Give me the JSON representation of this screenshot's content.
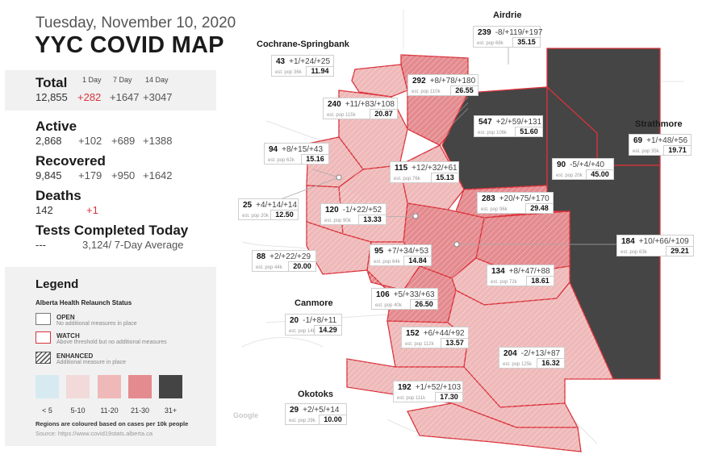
{
  "header": {
    "date": "Tuesday, November 10, 2020",
    "title": "YYC COVID MAP"
  },
  "columns": {
    "one_day": "1 Day",
    "seven_day": "7 Day",
    "fourteen_day": "14 Day"
  },
  "stats": {
    "total": {
      "label": "Total",
      "value": "12,855",
      "d1": "+282",
      "d7": "+1647",
      "d14": "+3047"
    },
    "active": {
      "label": "Active",
      "value": "2,868",
      "d1": "+102",
      "d7": "+689",
      "d14": "+1388"
    },
    "recovered": {
      "label": "Recovered",
      "value": "9,845",
      "d1": "+179",
      "d7": "+950",
      "d14": "+1642"
    },
    "deaths": {
      "label": "Deaths",
      "value": "142",
      "d1": "+1"
    },
    "tests": {
      "label": "Tests Completed Today",
      "value": "---",
      "avg": "3,124/ 7-Day Average"
    }
  },
  "legend": {
    "title": "Legend",
    "subtitle": "Alberta Health Relaunch Status",
    "statuses": [
      {
        "name": "OPEN",
        "desc": "No additional measures in place"
      },
      {
        "name": "WATCH",
        "desc": "Above threshold but no additional measures"
      },
      {
        "name": "ENHANCED",
        "desc": "Additional measure in place"
      }
    ],
    "scale": [
      {
        "label": "< 5",
        "color": "#d7eaf2"
      },
      {
        "label": "5-10",
        "color": "#f2dada"
      },
      {
        "label": "11-20",
        "color": "#efb9b9"
      },
      {
        "label": "21-30",
        "color": "#e48b8f"
      },
      {
        "label": "31+",
        "color": "#444444"
      }
    ],
    "note": "Regions are coloured based on cases per 10k people",
    "source": "Source: https://www.covid19stats.alberta.ca"
  },
  "towns": {
    "airdrie": "Airdrie",
    "cochrane": "Cochrane-Springbank",
    "strathmore": "Strathmore",
    "canmore": "Canmore",
    "okotoks": "Okotoks"
  },
  "map_tags": {
    "google": "Google"
  },
  "colors": {
    "dark": "#454545",
    "high": "#e48b8f",
    "mid": "#efb9b9",
    "low": "#f2dada",
    "border": "#d9333b"
  },
  "regions": [
    {
      "id": "airdrie",
      "cases": "239",
      "delta": "-8/+119/+197",
      "pop": "est. pop 68k",
      "rate": "35.15"
    },
    {
      "id": "cochrane",
      "cases": "43",
      "delta": "+1/+24/+25",
      "pop": "est. pop 36k",
      "rate": "11.94"
    },
    {
      "id": "nw-292",
      "cases": "292",
      "delta": "+8/+78/+180",
      "pop": "est. pop 110k",
      "rate": "26.55"
    },
    {
      "id": "nw-240",
      "cases": "240",
      "delta": "+11/+83/+108",
      "pop": "est. pop 115k",
      "rate": "20.87"
    },
    {
      "id": "ne-547",
      "cases": "547",
      "delta": "+2/+59/+131",
      "pop": "est. pop 106k",
      "rate": "51.60"
    },
    {
      "id": "strathmore",
      "cases": "69",
      "delta": "+1/+48/+56",
      "pop": "est. pop 35k",
      "rate": "19.71"
    },
    {
      "id": "w-94",
      "cases": "94",
      "delta": "+8/+15/+43",
      "pop": "est. pop 62k",
      "rate": "15.16"
    },
    {
      "id": "c-115",
      "cases": "115",
      "delta": "+12/+32/+61",
      "pop": "est. pop 76k",
      "rate": "15.13"
    },
    {
      "id": "e-90",
      "cases": "90",
      "delta": "-5/+4/+40",
      "pop": "est. pop 20k",
      "rate": "45.00"
    },
    {
      "id": "w-25",
      "cases": "25",
      "delta": "+4/+14/+14",
      "pop": "est. pop 20k",
      "rate": "12.50"
    },
    {
      "id": "c-120",
      "cases": "120",
      "delta": "-1/+22/+52",
      "pop": "est. pop 90k",
      "rate": "13.33"
    },
    {
      "id": "ne-283",
      "cases": "283",
      "delta": "+20/+75/+170",
      "pop": "est. pop 96k",
      "rate": "29.48"
    },
    {
      "id": "e-184",
      "cases": "184",
      "delta": "+10/+66/+109",
      "pop": "est. pop 63k",
      "rate": "29.21"
    },
    {
      "id": "sw-88",
      "cases": "88",
      "delta": "+2/+22/+29",
      "pop": "est. pop 44k",
      "rate": "20.00"
    },
    {
      "id": "c-95",
      "cases": "95",
      "delta": "+7/+34/+53",
      "pop": "est. pop 64k",
      "rate": "14.84"
    },
    {
      "id": "se-134",
      "cases": "134",
      "delta": "+8/+47/+88",
      "pop": "est. pop 72k",
      "rate": "18.61"
    },
    {
      "id": "s-106",
      "cases": "106",
      "delta": "+5/+33/+63",
      "pop": "est. pop 40k",
      "rate": "26.50"
    },
    {
      "id": "canmore",
      "cases": "20",
      "delta": "-1/+8/+11",
      "pop": "est. pop 14k",
      "rate": "14.29"
    },
    {
      "id": "s-152",
      "cases": "152",
      "delta": "+6/+44/+92",
      "pop": "est. pop 112k",
      "rate": "13.57"
    },
    {
      "id": "se-204",
      "cases": "204",
      "delta": "-2/+13/+87",
      "pop": "est. pop 125k",
      "rate": "16.32"
    },
    {
      "id": "s-192",
      "cases": "192",
      "delta": "+1/+52/+103",
      "pop": "est. pop 111k",
      "rate": "17.30"
    },
    {
      "id": "okotoks",
      "cases": "29",
      "delta": "+2/+5/+14",
      "pop": "est. pop 29k",
      "rate": "10.00"
    }
  ]
}
